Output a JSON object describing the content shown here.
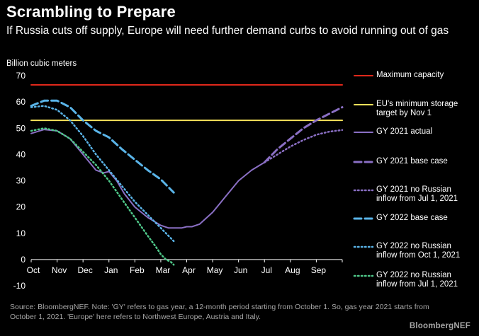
{
  "header": {
    "title": "Scrambling to Prepare",
    "subtitle": "If Russia cuts off supply, Europe will need further demand curbs to avoid running out of gas",
    "unit": "Billion cubic meters"
  },
  "footer": {
    "source": "Source: BloombergNEF. Note: 'GY' refers to gas year, a 12-month period starting from October 1. So, gas year 2021 starts from October 1, 2021. 'Europe' here refers to Northwest Europe, Austria and Italy.",
    "brand": "BloombergNEF"
  },
  "chart_data": {
    "type": "line",
    "title": "Scrambling to Prepare",
    "ylabel": "Billion cubic meters",
    "xlabel": "",
    "ylim": [
      -10,
      70
    ],
    "yticks": [
      -10,
      0,
      10,
      20,
      30,
      40,
      50,
      60,
      70
    ],
    "xlim": [
      0,
      12
    ],
    "categories": [
      "Oct",
      "Nov",
      "Dec",
      "Jan",
      "Feb",
      "Mar",
      "Apr",
      "May",
      "Jun",
      "Jul",
      "Aug",
      "Sep"
    ],
    "grid": false,
    "legend_position": "right",
    "series": [
      {
        "name": "Maximum capacity",
        "style": "solid",
        "color": "#e0281b",
        "x": [
          0,
          12
        ],
        "values": [
          66.5,
          66.5
        ]
      },
      {
        "name": "EU's minimum storage\ntarget by Nov 1",
        "style": "solid",
        "color": "#f5e15a",
        "x": [
          0,
          12
        ],
        "values": [
          53,
          53
        ]
      },
      {
        "name": "GY 2021 actual",
        "style": "solid",
        "color": "#8a6fc4",
        "x": [
          0,
          0.5,
          1,
          1.5,
          2,
          2.5,
          2.8,
          3,
          3.3,
          3.6,
          4,
          4.5,
          5,
          5.3,
          5.5,
          5.8,
          6,
          6.2,
          6.5,
          7,
          7.5,
          8,
          8.5,
          9
        ],
        "values": [
          48,
          49.5,
          49,
          46,
          40,
          34,
          33,
          33.5,
          30,
          25,
          20,
          16,
          13,
          12,
          12,
          12,
          12.5,
          12.5,
          13.5,
          18,
          24,
          30,
          34,
          37
        ]
      },
      {
        "name": "GY 2021 base case",
        "style": "dash",
        "color": "#8a6fc4",
        "x": [
          9,
          9.5,
          10,
          10.5,
          11,
          11.5,
          12
        ],
        "values": [
          37,
          42,
          46,
          50,
          53,
          55.5,
          58
        ]
      },
      {
        "name": "GY 2021 no Russian\ninflow from Jul 1, 2021",
        "style": "dot",
        "color": "#8a6fc4",
        "x": [
          9,
          9.5,
          10,
          10.5,
          11,
          11.5,
          12
        ],
        "values": [
          37,
          40,
          43,
          45.5,
          47.5,
          48.7,
          49.3
        ]
      },
      {
        "name": "GY 2022 base case",
        "style": "dash",
        "color": "#5ab4e8",
        "x": [
          0,
          0.5,
          1,
          1.5,
          2,
          2.5,
          3,
          3.5,
          4,
          4.5,
          5,
          5.3,
          5.5
        ],
        "values": [
          58.5,
          60.5,
          60.5,
          58,
          53,
          49,
          46.5,
          42,
          38,
          34,
          30.5,
          27.5,
          25.5
        ]
      },
      {
        "name": "GY 2022 no Russian\ninflow from Oct 1, 2021",
        "style": "dot",
        "color": "#5ab4e8",
        "x": [
          0,
          0.5,
          1,
          1.5,
          2,
          2.5,
          3,
          3.5,
          4,
          4.5,
          5,
          5.3,
          5.5
        ],
        "values": [
          58,
          58.5,
          57,
          53,
          47,
          40,
          34,
          28,
          22,
          17,
          12,
          9,
          7
        ]
      },
      {
        "name": "GY 2022 no Russian\ninflow from Jul 1, 2021",
        "style": "dot",
        "color": "#4fc98a",
        "x": [
          0,
          0.5,
          1,
          1.5,
          2,
          2.5,
          3,
          3.5,
          4,
          4.5,
          4.8,
          5,
          5.2,
          5.4,
          5.5
        ],
        "values": [
          49,
          50,
          49,
          46,
          41,
          36,
          30,
          23,
          16,
          9,
          5,
          2,
          0,
          -1,
          -2
        ]
      }
    ]
  }
}
